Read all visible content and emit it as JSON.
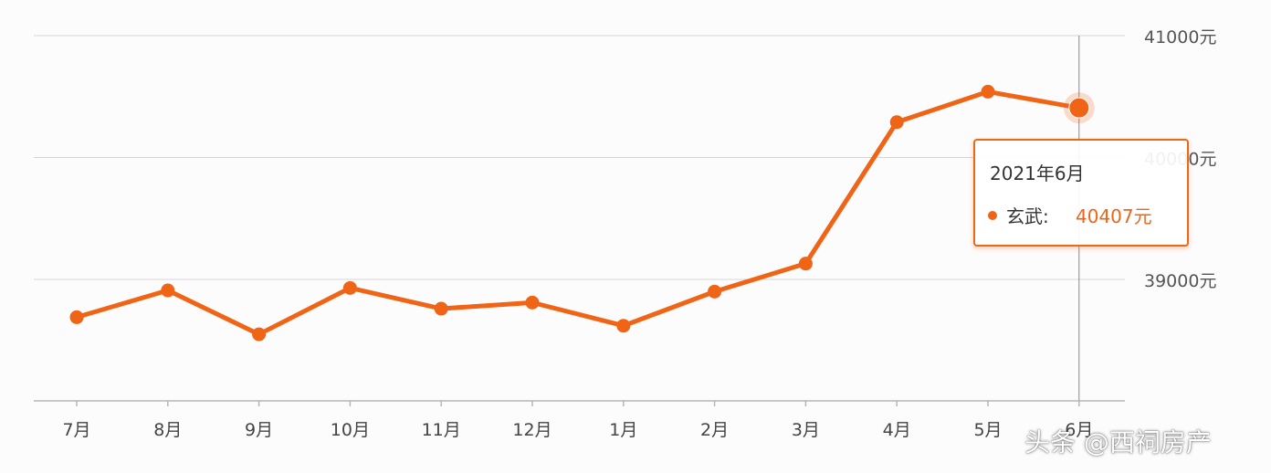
{
  "chart_data": {
    "type": "line",
    "categories": [
      "7月",
      "8月",
      "9月",
      "10月",
      "11月",
      "12月",
      "1月",
      "2月",
      "3月",
      "4月",
      "5月",
      "6月"
    ],
    "series": [
      {
        "name": "玄武",
        "color": "#f06416",
        "values": [
          38690,
          38910,
          38550,
          38930,
          38760,
          38810,
          38620,
          38900,
          39130,
          40290,
          40540,
          40407
        ]
      }
    ],
    "y_ticks": [
      {
        "value": 39000,
        "label": "39000元"
      },
      {
        "value": 40000,
        "label": "40000元"
      },
      {
        "value": 41000,
        "label": "41000元"
      }
    ],
    "ylim": [
      38000,
      41000
    ],
    "grid": true,
    "highlight_index": 11
  },
  "tooltip": {
    "title": "2021年6月",
    "series_label": "玄武:",
    "value_label": "40407元"
  },
  "watermark": "头条 @西祠房产"
}
